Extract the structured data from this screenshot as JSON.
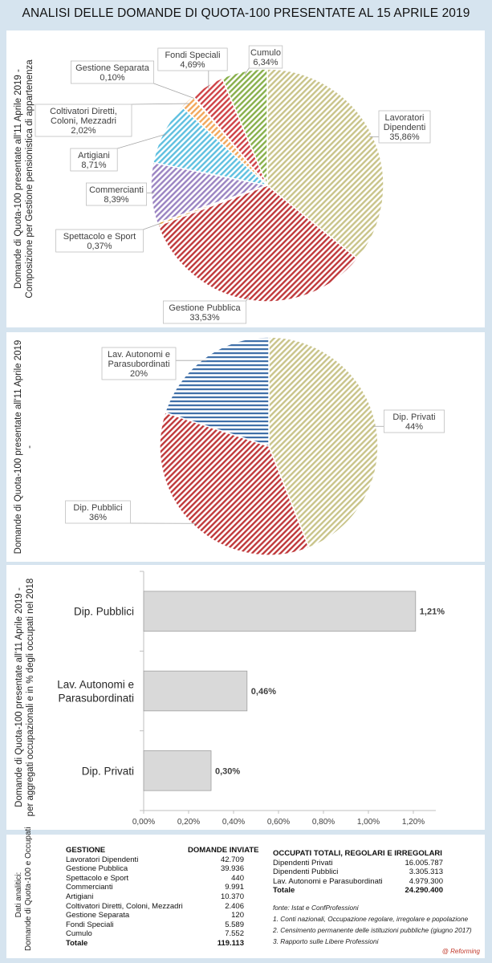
{
  "title": "ANALISI DELLE DOMANDE DI QUOTA-100 PRESENTATE AL 15 APRILE 2019",
  "panel1_side": [
    "Domande di Quota-100 presentate all'11 Aprile 2019 -",
    "Composizione per Gestione pensionistica di appartenenza"
  ],
  "panel2_side": [
    "Domande di Quota-100 presentate all'11 Aprile 2019",
    "-"
  ],
  "panel3_side": [
    "Domande di Quota-100 presentate all'11 Aprile 2019 -",
    "per aggregati occupazionali e in % degli occupati nel 2018"
  ],
  "panel4_side": [
    "Dati analitici:",
    "Domande di Quota-100 e Occupati"
  ],
  "chart_data": [
    {
      "type": "pie",
      "slices": [
        {
          "label": [
            "Lavoratori",
            "Dipendenti"
          ],
          "value": 35.86,
          "text": "35,86%",
          "color": "#c9c48a"
        },
        {
          "label": [
            "Gestione Pubblica"
          ],
          "value": 33.53,
          "text": "33,53%",
          "color": "#c0393b"
        },
        {
          "label": [
            "Spettacolo e Sport"
          ],
          "value": 0.37,
          "text": "0,37%",
          "color": "#e3a54a"
        },
        {
          "label": [
            "Commercianti"
          ],
          "value": 8.39,
          "text": "8,39%",
          "color": "#9b84c2"
        },
        {
          "label": [
            "Artigiani"
          ],
          "value": 8.71,
          "text": "8,71%",
          "color": "#5fc0e0"
        },
        {
          "label": [
            "Coltivatori Diretti,",
            "Coloni, Mezzadri"
          ],
          "value": 2.02,
          "text": "2,02%",
          "color": "#f2a85c"
        },
        {
          "label": [
            "Gestione Separata"
          ],
          "value": 0.1,
          "text": "0,10%",
          "color": "#9ab7d8"
        },
        {
          "label": [
            "Fondi Speciali"
          ],
          "value": 4.69,
          "text": "4,69%",
          "color": "#cf4347"
        },
        {
          "label": [
            "Cumulo"
          ],
          "value": 6.34,
          "text": "6,34%",
          "color": "#88b04b"
        }
      ]
    },
    {
      "type": "pie",
      "slices": [
        {
          "label": [
            "Dip. Privati"
          ],
          "value": 44,
          "text": "44%",
          "color": "#c9c48a"
        },
        {
          "label": [
            "Dip. Pubblici"
          ],
          "value": 36,
          "text": "36%",
          "color": "#c0393b"
        },
        {
          "label": [
            "Lav. Autonomi e",
            "Parasubordinati"
          ],
          "value": 20,
          "text": "20%",
          "color": "#3f6fa8"
        }
      ]
    },
    {
      "type": "bar",
      "orientation": "horizontal",
      "categories": [
        [
          "Dip. Pubblici"
        ],
        [
          "Lav. Autonomi e",
          "Parasubordinati"
        ],
        [
          "Dip. Privati"
        ]
      ],
      "values": [
        1.21,
        0.46,
        0.3
      ],
      "value_labels": [
        "1,21%",
        "0,46%",
        "0,30%"
      ],
      "xlim": [
        0,
        1.3
      ],
      "xticks": [
        0,
        0.2,
        0.4,
        0.6,
        0.8,
        1.0,
        1.2
      ],
      "xtick_labels": [
        "0,00%",
        "0,20%",
        "0,40%",
        "0,60%",
        "0,80%",
        "1,00%",
        "1,20%"
      ],
      "gridlines": false,
      "bar_color": "#d9d9d9"
    }
  ],
  "table1": {
    "header": [
      "GESTIONE",
      "DOMANDE INVIATE"
    ],
    "rows": [
      [
        "Lavoratori Dipendenti",
        "42.709"
      ],
      [
        "Gestione Pubblica",
        "39.936"
      ],
      [
        "Spettacolo e Sport",
        "440"
      ],
      [
        "Commercianti",
        "9.991"
      ],
      [
        "Artigiani",
        "10.370"
      ],
      [
        "Coltivatori Diretti, Coloni, Mezzadri",
        "2.406"
      ],
      [
        "Gestione Separata",
        "120"
      ],
      [
        "Fondi Speciali",
        "5.589"
      ],
      [
        "Cumulo",
        "7.552"
      ]
    ],
    "total": [
      "Totale",
      "119.113"
    ]
  },
  "table2": {
    "header": "OCCUPATI TOTALI, REGOLARI E IRREGOLARI",
    "rows": [
      [
        "Dipendenti Privati",
        "16.005.787"
      ],
      [
        "Dipendenti Pubblici",
        "3.305.313"
      ],
      [
        "Lav. Autonomi e Parasubordinati",
        "4.979.300"
      ]
    ],
    "total": [
      "Totale",
      "24.290.400"
    ]
  },
  "notes": [
    "fonte: Istat e ConfProfessioni",
    "1. Conti nazionali, Occupazione regolare, irregolare e popolazione",
    "2. Censimento permanente delle istituzioni pubbliche (giugno 2017)",
    "3. Rapporto sulle Libere Professioni"
  ],
  "credit": "@ Reforming"
}
